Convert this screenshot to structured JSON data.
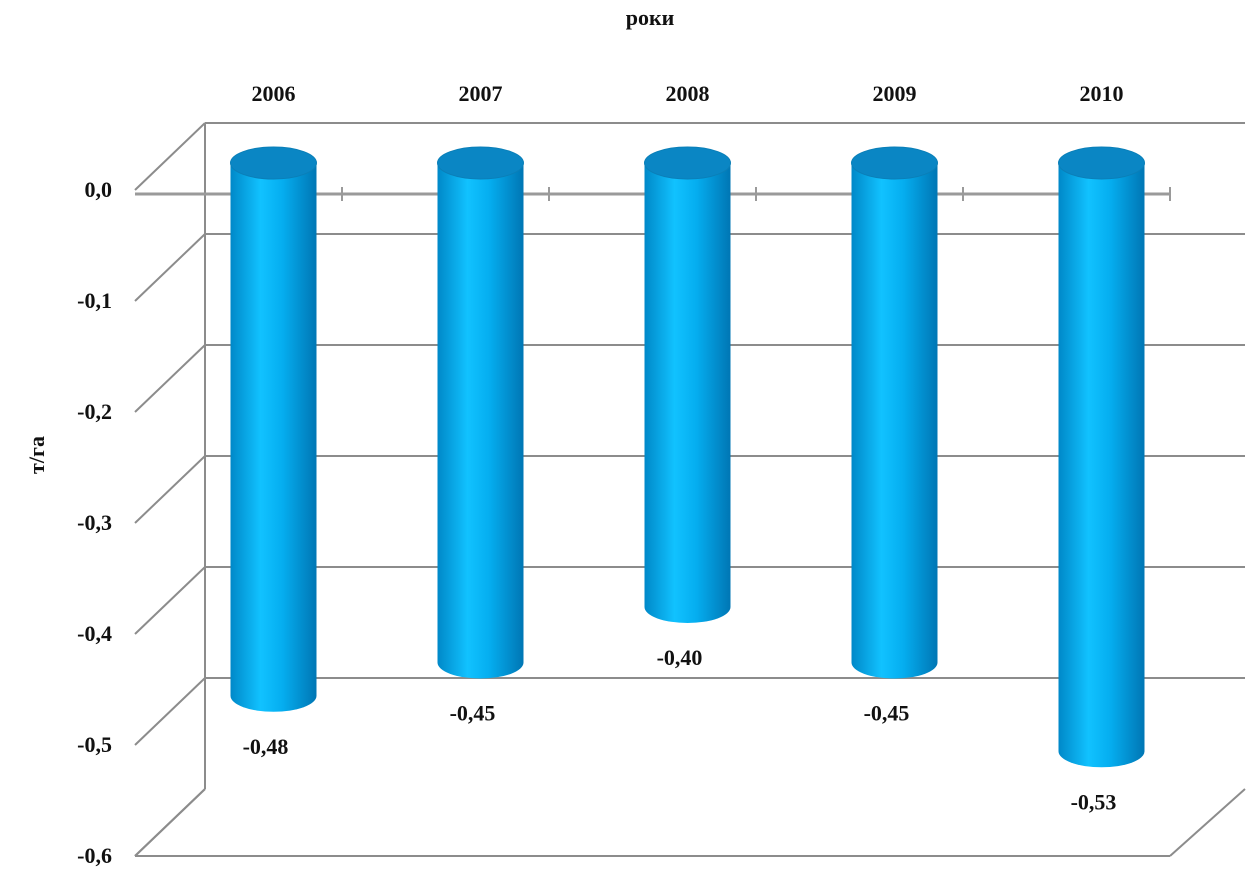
{
  "chart_data": {
    "type": "bar",
    "style": "3d-cylinder",
    "xlabel": "роки",
    "ylabel": "т/га",
    "categories": [
      "2006",
      "2007",
      "2008",
      "2009",
      "2010"
    ],
    "values": [
      -0.48,
      -0.45,
      -0.4,
      -0.45,
      -0.53
    ],
    "data_labels": [
      "-0,48",
      "-0,45",
      "-0,40",
      "-0,45",
      "-0,53"
    ],
    "y_ticks": [
      "0,0",
      "-0,1",
      "-0,2",
      "-0,3",
      "-0,4",
      "-0,5",
      "-0,6"
    ],
    "y_tick_values": [
      0,
      -0.1,
      -0.2,
      -0.3,
      -0.4,
      -0.5,
      -0.6
    ],
    "ylim": [
      -0.6,
      0.0
    ],
    "category_axis_position": "top",
    "grid": true,
    "colors": {
      "bar": "#00a8e8",
      "bar_dark": "#0077b0",
      "bar_top": "#0a86c4",
      "grid": "#8c8c8c"
    }
  }
}
